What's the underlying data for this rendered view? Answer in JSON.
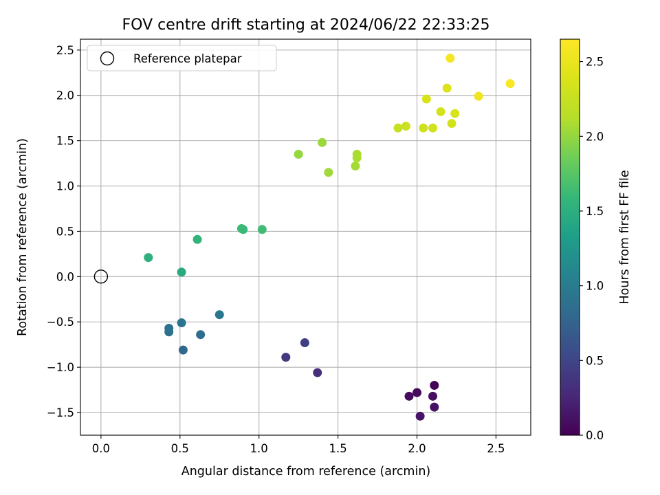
{
  "chart_data": {
    "type": "scatter",
    "title": "FOV centre drift starting at 2024/06/22 22:33:25",
    "xlabel": "Angular distance from reference (arcmin)",
    "ylabel": "Rotation from reference (arcmin)",
    "xlim": [
      -0.13,
      2.72
    ],
    "ylim": [
      -1.75,
      2.62
    ],
    "xticks": [
      0.0,
      0.5,
      1.0,
      1.5,
      2.0,
      2.5
    ],
    "xtick_labels": [
      "0.0",
      "0.5",
      "1.0",
      "1.5",
      "2.0",
      "2.5"
    ],
    "yticks": [
      -1.5,
      -1.0,
      -0.5,
      0.0,
      0.5,
      1.0,
      1.5,
      2.0,
      2.5
    ],
    "ytick_labels": [
      "−1.5",
      "−1.0",
      "−0.5",
      "0.0",
      "0.5",
      "1.0",
      "1.5",
      "2.0",
      "2.5"
    ],
    "grid": true,
    "legend": {
      "placement": "top-left",
      "entries": [
        {
          "label": "Reference platepar",
          "marker": "open-circle"
        }
      ]
    },
    "reference": {
      "x": 0.0,
      "y": 0.0
    },
    "colorbar": {
      "label": "Hours from first FF file",
      "range": [
        0.0,
        2.65
      ],
      "ticks": [
        0.0,
        0.5,
        1.0,
        1.5,
        2.0,
        2.5
      ],
      "tick_labels": [
        "0.0",
        "0.5",
        "1.0",
        "1.5",
        "2.0",
        "2.5"
      ],
      "colormap": "viridis"
    },
    "points": [
      {
        "x": 2.11,
        "y": -1.2,
        "hours": 0.02
      },
      {
        "x": 2.0,
        "y": -1.28,
        "hours": 0.05
      },
      {
        "x": 1.95,
        "y": -1.32,
        "hours": 0.07
      },
      {
        "x": 2.1,
        "y": -1.32,
        "hours": 0.09
      },
      {
        "x": 2.11,
        "y": -1.44,
        "hours": 0.11
      },
      {
        "x": 2.02,
        "y": -1.54,
        "hours": 0.13
      },
      {
        "x": 1.37,
        "y": -1.06,
        "hours": 0.33
      },
      {
        "x": 1.17,
        "y": -0.89,
        "hours": 0.4
      },
      {
        "x": 1.29,
        "y": -0.73,
        "hours": 0.45
      },
      {
        "x": 0.52,
        "y": -0.81,
        "hours": 0.8
      },
      {
        "x": 0.63,
        "y": -0.64,
        "hours": 0.85
      },
      {
        "x": 0.43,
        "y": -0.61,
        "hours": 0.88
      },
      {
        "x": 0.43,
        "y": -0.57,
        "hours": 0.9
      },
      {
        "x": 0.51,
        "y": -0.51,
        "hours": 0.92
      },
      {
        "x": 0.75,
        "y": -0.42,
        "hours": 0.95
      },
      {
        "x": 0.51,
        "y": 0.05,
        "hours": 1.45
      },
      {
        "x": 0.3,
        "y": 0.21,
        "hours": 1.52
      },
      {
        "x": 0.61,
        "y": 0.41,
        "hours": 1.55
      },
      {
        "x": 0.9,
        "y": 0.52,
        "hours": 1.6
      },
      {
        "x": 0.89,
        "y": 0.53,
        "hours": 1.62
      },
      {
        "x": 1.02,
        "y": 0.52,
        "hours": 1.64
      },
      {
        "x": 1.25,
        "y": 1.35,
        "hours": 2.0
      },
      {
        "x": 1.4,
        "y": 1.48,
        "hours": 2.02
      },
      {
        "x": 1.44,
        "y": 1.15,
        "hours": 2.04
      },
      {
        "x": 1.61,
        "y": 1.22,
        "hours": 2.06
      },
      {
        "x": 1.62,
        "y": 1.31,
        "hours": 2.08
      },
      {
        "x": 1.62,
        "y": 1.35,
        "hours": 2.09
      },
      {
        "x": 1.88,
        "y": 1.64,
        "hours": 2.25
      },
      {
        "x": 1.93,
        "y": 1.66,
        "hours": 2.27
      },
      {
        "x": 2.04,
        "y": 1.64,
        "hours": 2.29
      },
      {
        "x": 2.1,
        "y": 1.64,
        "hours": 2.31
      },
      {
        "x": 2.22,
        "y": 1.69,
        "hours": 2.32
      },
      {
        "x": 2.15,
        "y": 1.82,
        "hours": 2.34
      },
      {
        "x": 2.24,
        "y": 1.8,
        "hours": 2.36
      },
      {
        "x": 2.06,
        "y": 1.96,
        "hours": 2.38
      },
      {
        "x": 2.19,
        "y": 2.08,
        "hours": 2.4
      },
      {
        "x": 2.39,
        "y": 1.99,
        "hours": 2.55
      },
      {
        "x": 2.59,
        "y": 2.13,
        "hours": 2.62
      },
      {
        "x": 2.21,
        "y": 2.41,
        "hours": 2.58
      }
    ]
  }
}
